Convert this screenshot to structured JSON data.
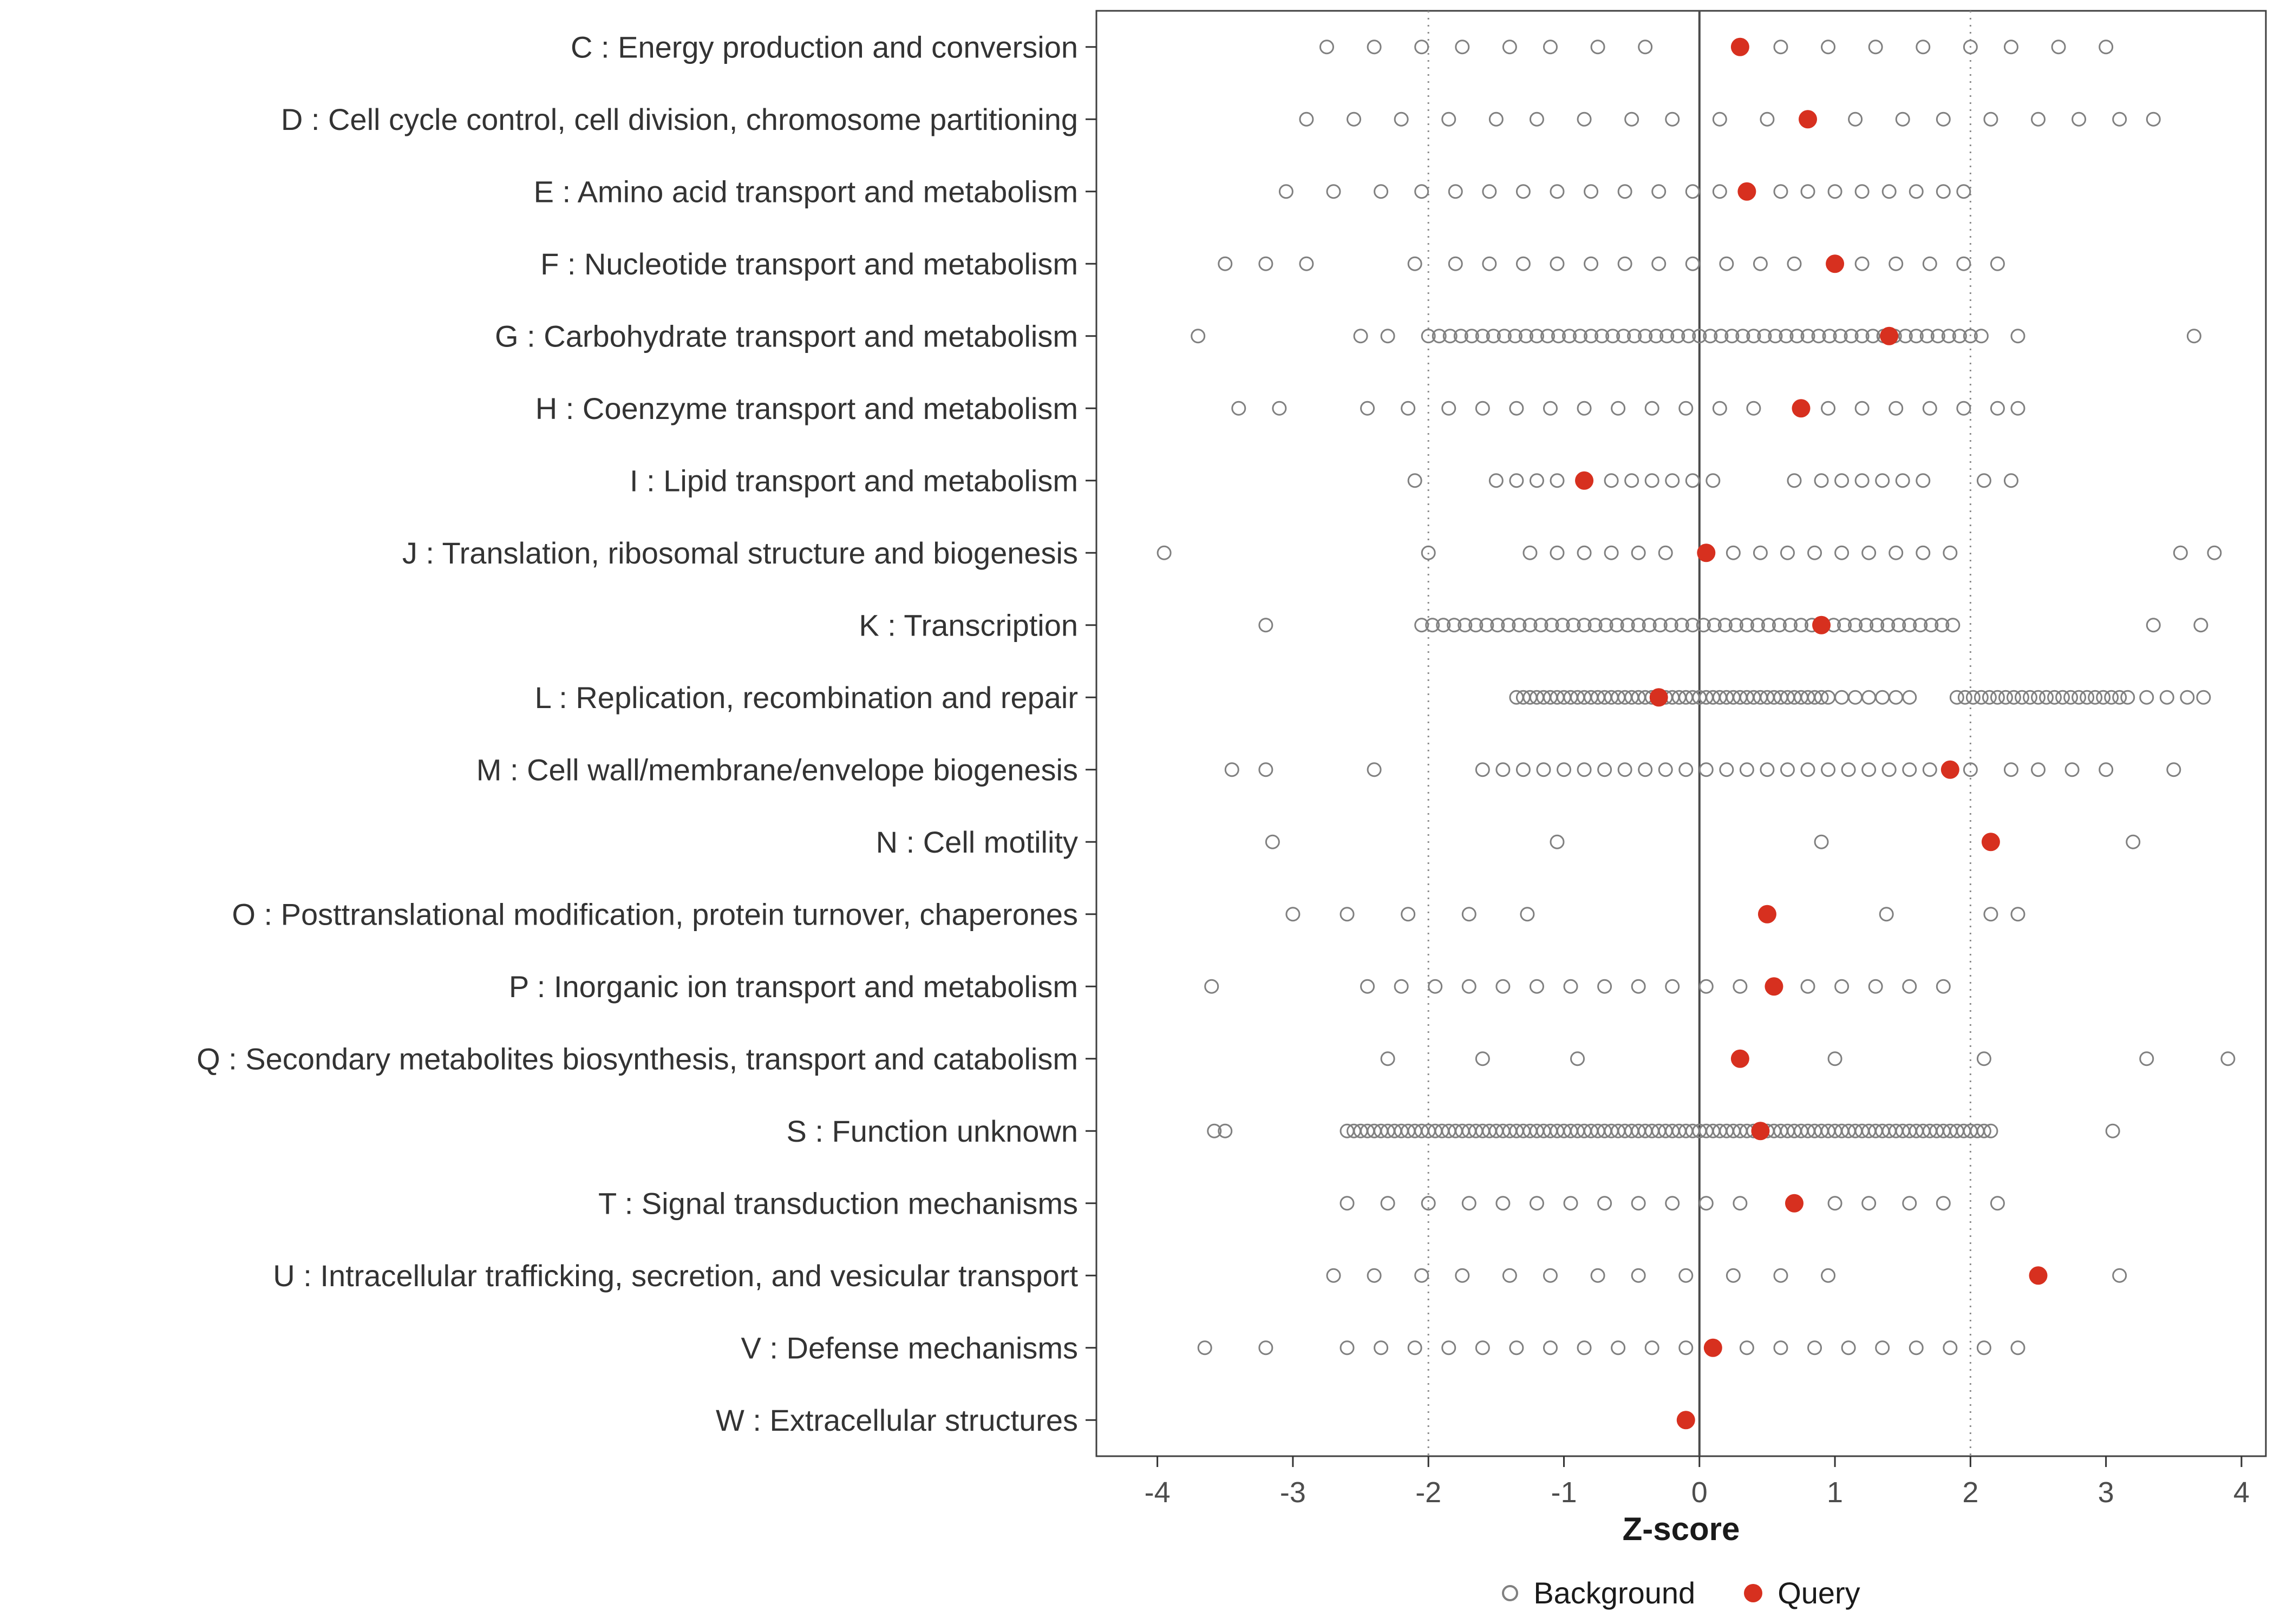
{
  "chart_data": {
    "type": "scatter",
    "title": "",
    "xlabel": "Z-score",
    "xlim": [
      -4.45,
      4.18
    ],
    "x_ticks": [
      -4,
      -3,
      -2,
      -1,
      0,
      1,
      2,
      3,
      4
    ],
    "grid": "off",
    "reference_lines": {
      "solid": [
        0
      ],
      "dotted": [
        -2,
        2
      ]
    },
    "legend_position": "bottom",
    "legend": [
      {
        "label": "Background",
        "marker": "open-circle"
      },
      {
        "label": "Query",
        "marker": "filled-circle"
      }
    ],
    "colors": {
      "query": "#d7301f",
      "background_stroke": "#808080",
      "axis_text": "#4d4d4d",
      "panel_border": "#404040",
      "zero_line": "#4a4a4a",
      "dotted_line": "#8a8a8a"
    },
    "categories": [
      {
        "label": "C : Energy production and conversion",
        "query": 0.3,
        "background": [
          -2.75,
          -2.4,
          -2.05,
          -1.75,
          -1.4,
          -1.1,
          -0.75,
          -0.4,
          0.6,
          0.95,
          1.3,
          1.65,
          2.0,
          2.3,
          2.65,
          3.0
        ]
      },
      {
        "label": "D : Cell cycle control, cell division, chromosome partitioning",
        "query": 0.8,
        "background": [
          -2.9,
          -2.55,
          -2.2,
          -1.85,
          -1.5,
          -1.2,
          -0.85,
          -0.5,
          -0.2,
          0.15,
          0.5,
          1.15,
          1.5,
          1.8,
          2.15,
          2.5,
          2.8,
          3.1,
          3.35
        ]
      },
      {
        "label": "E : Amino acid transport and metabolism",
        "query": 0.35,
        "background": [
          -3.05,
          -2.7,
          -2.35,
          -2.05,
          -1.8,
          -1.55,
          -1.3,
          -1.05,
          -0.8,
          -0.55,
          -0.3,
          -0.05,
          0.15,
          0.6,
          0.8,
          1.0,
          1.2,
          1.4,
          1.6,
          1.8,
          1.95
        ]
      },
      {
        "label": "F : Nucleotide transport and metabolism",
        "query": 1.0,
        "background": [
          -3.5,
          -3.2,
          -2.9,
          -2.1,
          -1.8,
          -1.55,
          -1.3,
          -1.05,
          -0.8,
          -0.55,
          -0.3,
          -0.05,
          0.2,
          0.45,
          0.7,
          1.2,
          1.45,
          1.7,
          1.95,
          2.2
        ]
      },
      {
        "label": "G : Carbohydrate transport and metabolism",
        "query": 1.4,
        "background": [
          -3.7,
          -2.5,
          -2.3,
          -2.0,
          -1.92,
          -1.84,
          -1.76,
          -1.68,
          -1.6,
          -1.52,
          -1.44,
          -1.36,
          -1.28,
          -1.2,
          -1.12,
          -1.04,
          -0.96,
          -0.88,
          -0.8,
          -0.72,
          -0.64,
          -0.56,
          -0.48,
          -0.4,
          -0.32,
          -0.24,
          -0.16,
          -0.08,
          0,
          0.08,
          0.16,
          0.24,
          0.32,
          0.4,
          0.48,
          0.56,
          0.64,
          0.72,
          0.8,
          0.88,
          0.96,
          1.04,
          1.12,
          1.2,
          1.28,
          1.36,
          1.44,
          1.52,
          1.6,
          1.68,
          1.76,
          1.84,
          1.92,
          2.0,
          2.08,
          2.35,
          3.65
        ]
      },
      {
        "label": "H : Coenzyme transport and metabolism",
        "query": 0.75,
        "background": [
          -3.4,
          -3.1,
          -2.45,
          -2.15,
          -1.85,
          -1.6,
          -1.35,
          -1.1,
          -0.85,
          -0.6,
          -0.35,
          -0.1,
          0.15,
          0.4,
          0.95,
          1.2,
          1.45,
          1.7,
          1.95,
          2.2,
          2.35
        ]
      },
      {
        "label": "I : Lipid transport and metabolism",
        "query": -0.85,
        "background": [
          -2.1,
          -1.5,
          -1.35,
          -1.2,
          -1.05,
          -0.65,
          -0.5,
          -0.35,
          -0.2,
          -0.05,
          0.1,
          0.7,
          0.9,
          1.05,
          1.2,
          1.35,
          1.5,
          1.65,
          2.1,
          2.3
        ]
      },
      {
        "label": "J : Translation, ribosomal structure and biogenesis",
        "query": 0.05,
        "background": [
          -3.95,
          -2.0,
          -1.25,
          -1.05,
          -0.85,
          -0.65,
          -0.45,
          -0.25,
          0.25,
          0.45,
          0.65,
          0.85,
          1.05,
          1.25,
          1.45,
          1.65,
          1.85,
          3.55,
          3.8
        ]
      },
      {
        "label": "K : Transcription",
        "query": 0.9,
        "background": [
          -3.2,
          -2.05,
          -1.97,
          -1.89,
          -1.81,
          -1.73,
          -1.65,
          -1.57,
          -1.49,
          -1.41,
          -1.33,
          -1.25,
          -1.17,
          -1.09,
          -1.01,
          -0.93,
          -0.85,
          -0.77,
          -0.69,
          -0.61,
          -0.53,
          -0.45,
          -0.37,
          -0.29,
          -0.21,
          -0.13,
          -0.05,
          0.03,
          0.11,
          0.19,
          0.27,
          0.35,
          0.43,
          0.51,
          0.59,
          0.67,
          0.75,
          0.83,
          0.91,
          0.99,
          1.07,
          1.15,
          1.23,
          1.31,
          1.39,
          1.47,
          1.55,
          1.63,
          1.71,
          1.79,
          1.87,
          3.35,
          3.7
        ]
      },
      {
        "label": "L : Replication, recombination and repair",
        "query": -0.3,
        "background": [
          -1.35,
          -1.3,
          -1.25,
          -1.2,
          -1.15,
          -1.1,
          -1.05,
          -1.0,
          -0.95,
          -0.9,
          -0.85,
          -0.8,
          -0.75,
          -0.7,
          -0.65,
          -0.6,
          -0.55,
          -0.5,
          -0.45,
          -0.4,
          -0.35,
          -0.3,
          -0.25,
          -0.2,
          -0.15,
          -0.1,
          -0.05,
          0,
          0.05,
          0.1,
          0.15,
          0.2,
          0.25,
          0.3,
          0.35,
          0.4,
          0.45,
          0.5,
          0.55,
          0.6,
          0.65,
          0.7,
          0.75,
          0.8,
          0.85,
          0.9,
          0.95,
          1.05,
          1.15,
          1.25,
          1.35,
          1.45,
          1.55,
          1.9,
          1.96,
          2.02,
          2.08,
          2.14,
          2.2,
          2.26,
          2.32,
          2.38,
          2.44,
          2.5,
          2.56,
          2.62,
          2.68,
          2.74,
          2.8,
          2.86,
          2.92,
          2.98,
          3.04,
          3.1,
          3.16,
          3.3,
          3.45,
          3.6,
          3.72
        ]
      },
      {
        "label": "M : Cell wall/membrane/envelope biogenesis",
        "query": 1.85,
        "background": [
          -3.45,
          -3.2,
          -2.4,
          -1.6,
          -1.45,
          -1.3,
          -1.15,
          -1.0,
          -0.85,
          -0.7,
          -0.55,
          -0.4,
          -0.25,
          -0.1,
          0.05,
          0.2,
          0.35,
          0.5,
          0.65,
          0.8,
          0.95,
          1.1,
          1.25,
          1.4,
          1.55,
          1.7,
          2.0,
          2.3,
          2.5,
          2.75,
          3.0,
          3.5
        ]
      },
      {
        "label": "N : Cell motility",
        "query": 2.15,
        "background": [
          -3.15,
          -1.05,
          0.9,
          3.2
        ]
      },
      {
        "label": "O : Posttranslational modification, protein turnover, chaperones",
        "query": 0.5,
        "background": [
          -3.0,
          -2.6,
          -2.15,
          -1.7,
          -1.27,
          1.38,
          2.15,
          2.35
        ]
      },
      {
        "label": "P : Inorganic ion transport and metabolism",
        "query": 0.55,
        "background": [
          -3.6,
          -2.45,
          -2.2,
          -1.95,
          -1.7,
          -1.45,
          -1.2,
          -0.95,
          -0.7,
          -0.45,
          -0.2,
          0.05,
          0.3,
          0.8,
          1.05,
          1.3,
          1.55,
          1.8
        ]
      },
      {
        "label": "Q : Secondary metabolites biosynthesis, transport and catabolism",
        "query": 0.3,
        "background": [
          -2.3,
          -1.6,
          -0.9,
          1.0,
          2.1,
          3.3,
          3.9
        ]
      },
      {
        "label": "S : Function unknown",
        "query": 0.45,
        "background": [
          -3.58,
          -3.5,
          -2.6,
          -2.55,
          -2.5,
          -2.45,
          -2.4,
          -2.35,
          -2.3,
          -2.25,
          -2.2,
          -2.15,
          -2.1,
          -2.05,
          -2.0,
          -1.95,
          -1.9,
          -1.85,
          -1.8,
          -1.75,
          -1.7,
          -1.65,
          -1.6,
          -1.55,
          -1.5,
          -1.45,
          -1.4,
          -1.35,
          -1.3,
          -1.25,
          -1.2,
          -1.15,
          -1.1,
          -1.05,
          -1.0,
          -0.95,
          -0.9,
          -0.85,
          -0.8,
          -0.75,
          -0.7,
          -0.65,
          -0.6,
          -0.55,
          -0.5,
          -0.45,
          -0.4,
          -0.35,
          -0.3,
          -0.25,
          -0.2,
          -0.15,
          -0.1,
          -0.05,
          0,
          0.05,
          0.1,
          0.15,
          0.2,
          0.25,
          0.3,
          0.35,
          0.4,
          0.45,
          0.5,
          0.55,
          0.6,
          0.65,
          0.7,
          0.75,
          0.8,
          0.85,
          0.9,
          0.95,
          1.0,
          1.05,
          1.1,
          1.15,
          1.2,
          1.25,
          1.3,
          1.35,
          1.4,
          1.45,
          1.5,
          1.55,
          1.6,
          1.65,
          1.7,
          1.75,
          1.8,
          1.85,
          1.9,
          1.95,
          2.0,
          2.05,
          2.1,
          2.15,
          3.05
        ]
      },
      {
        "label": "T : Signal transduction mechanisms",
        "query": 0.7,
        "background": [
          -2.6,
          -2.3,
          -2.0,
          -1.7,
          -1.45,
          -1.2,
          -0.95,
          -0.7,
          -0.45,
          -0.2,
          0.05,
          0.3,
          1.0,
          1.25,
          1.55,
          1.8,
          2.2
        ]
      },
      {
        "label": "U : Intracellular trafficking, secretion, and vesicular transport",
        "query": 2.5,
        "background": [
          -2.7,
          -2.4,
          -2.05,
          -1.75,
          -1.4,
          -1.1,
          -0.75,
          -0.45,
          -0.1,
          0.25,
          0.6,
          0.95,
          3.1
        ]
      },
      {
        "label": "V : Defense mechanisms",
        "query": 0.1,
        "background": [
          -3.65,
          -3.2,
          -2.6,
          -2.35,
          -2.1,
          -1.85,
          -1.6,
          -1.35,
          -1.1,
          -0.85,
          -0.6,
          -0.35,
          -0.1,
          0.35,
          0.6,
          0.85,
          1.1,
          1.35,
          1.6,
          1.85,
          2.1,
          2.35
        ]
      },
      {
        "label": "W : Extracellular structures",
        "query": -0.1,
        "background": []
      }
    ]
  }
}
